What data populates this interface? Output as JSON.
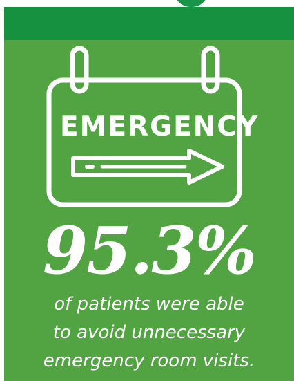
{
  "colors": {
    "band": "#16913f",
    "card": "#52a443",
    "text": "#ffffff"
  },
  "sign": {
    "icon": "emergency-sign-icon",
    "label": "EMERGENCY",
    "arrow_icon": "right-arrow-icon"
  },
  "stat": {
    "value": "95.3%"
  },
  "caption": {
    "lines": [
      "of patients were able",
      "to avoid unnecessary",
      "emergency room visits."
    ]
  }
}
